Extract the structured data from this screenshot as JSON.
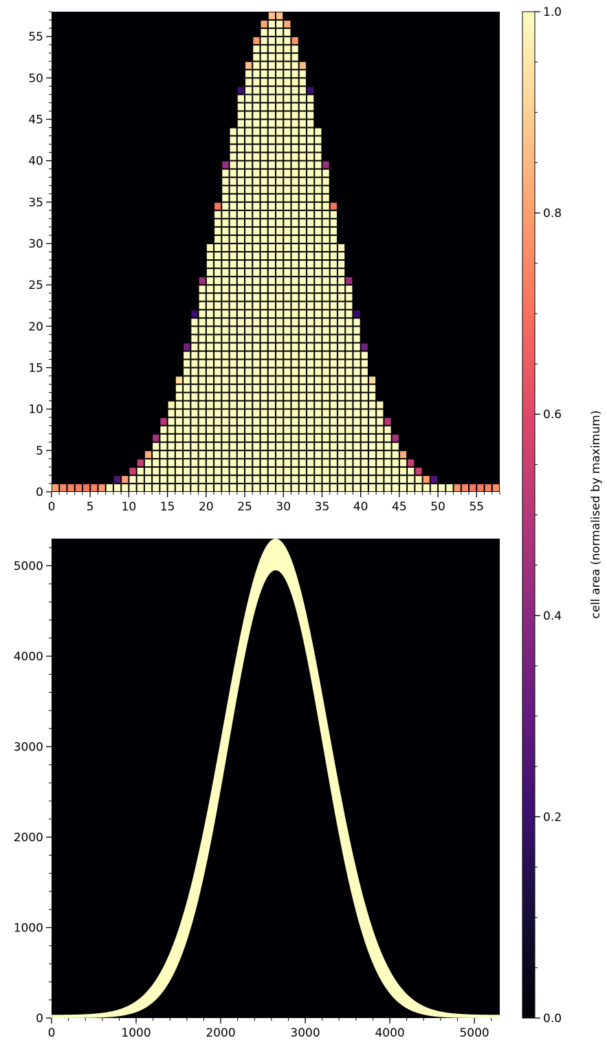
{
  "chart_data": [
    {
      "type": "heatmap",
      "title": "",
      "xlabel": "",
      "ylabel": "",
      "xlim": [
        0,
        58
      ],
      "ylim": [
        0,
        58
      ],
      "xticks": [
        0,
        5,
        10,
        15,
        20,
        25,
        30,
        35,
        40,
        45,
        50,
        55
      ],
      "yticks": [
        0,
        5,
        10,
        15,
        20,
        25,
        30,
        35,
        40,
        45,
        50,
        55
      ],
      "grid": false,
      "background": "#000004",
      "cell_edge": "#000004",
      "colormap": "magma",
      "profile": {
        "shape": "gaussian",
        "center_x": 29,
        "peak_y": 58,
        "sigma": 7.4,
        "baseline_row": 0
      },
      "baseline_row_values": [
        0.8,
        0.76,
        0.74,
        0.72,
        0.72,
        0.74,
        0.78,
        1.0,
        1.0,
        1.0,
        1.0,
        1.0,
        1.0,
        1.0,
        1.0,
        1.0,
        1.0,
        1.0,
        1.0,
        1.0,
        1.0,
        1.0,
        1.0,
        1.0,
        1.0,
        1.0,
        1.0,
        1.0,
        1.0,
        1.0,
        1.0,
        1.0,
        1.0,
        1.0,
        1.0,
        1.0,
        1.0,
        1.0,
        1.0,
        1.0,
        1.0,
        1.0,
        1.0,
        1.0,
        1.0,
        1.0,
        1.0,
        1.0,
        1.0,
        1.0,
        1.0,
        1.0,
        0.78,
        0.74,
        0.72,
        0.72,
        0.74,
        0.76
      ]
    },
    {
      "type": "area",
      "title": "",
      "xlabel": "",
      "ylabel": "",
      "xlim": [
        0,
        5300
      ],
      "ylim": [
        0,
        5300
      ],
      "xticks": [
        0,
        1000,
        2000,
        3000,
        4000,
        5000
      ],
      "yticks": [
        0,
        1000,
        2000,
        3000,
        4000,
        5000
      ],
      "grid": false,
      "background": "#000004",
      "fill_color": "#fcfdbf",
      "band": {
        "center_x": 2650,
        "outer_peak": 5300,
        "inner_peak": 4950,
        "outer_sigma": 620,
        "inner_sigma": 560,
        "baseline": 35
      }
    }
  ],
  "colorbar": {
    "label": "cell area (normalised by maximum)",
    "ticks": [
      0.0,
      0.2,
      0.4,
      0.6,
      0.8,
      1.0
    ],
    "tick_labels": [
      "0.0",
      "0.2",
      "0.4",
      "0.6",
      "0.8",
      "1.0"
    ],
    "range": [
      0.0,
      1.0
    ],
    "colormap": "magma"
  }
}
